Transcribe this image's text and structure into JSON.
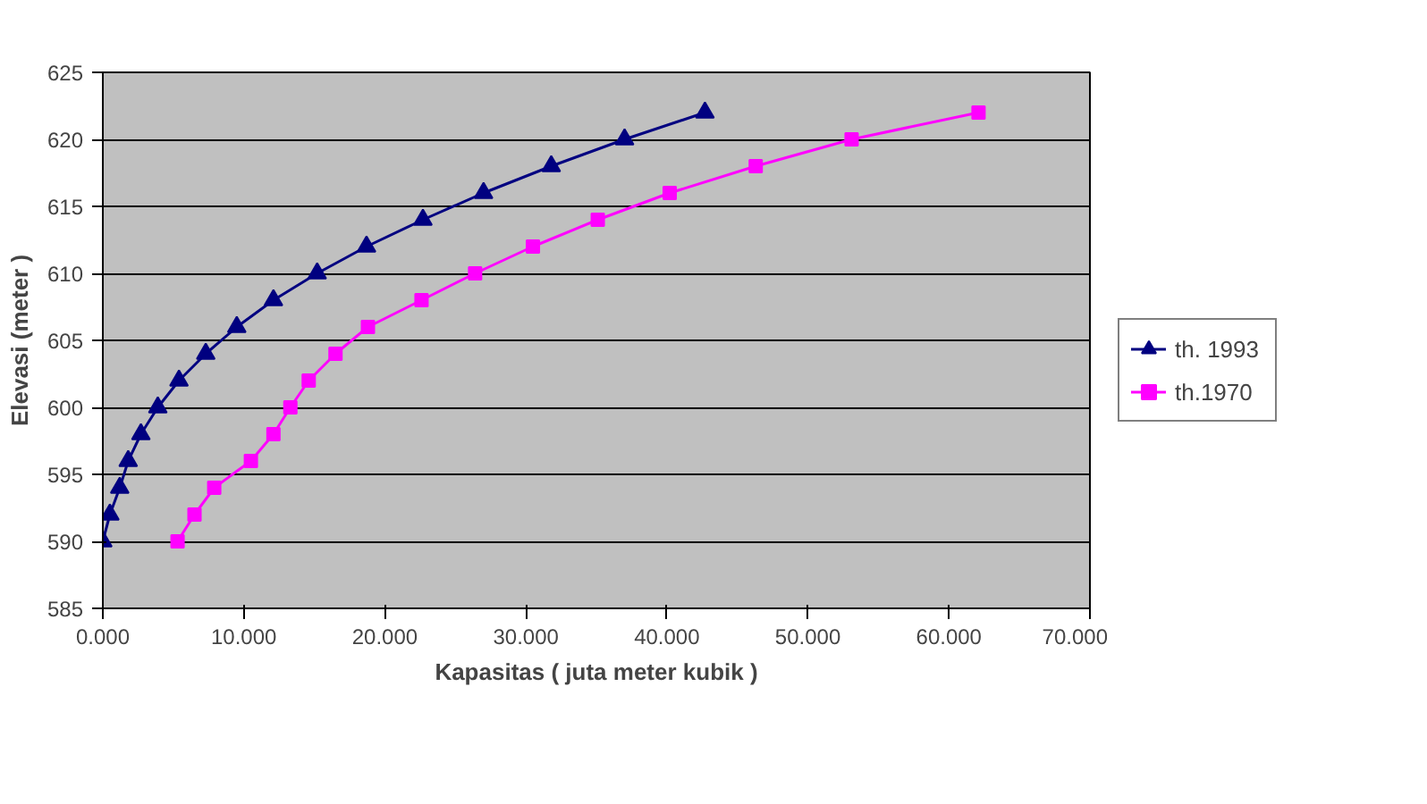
{
  "chart_data": {
    "type": "line",
    "xlabel": "Kapasitas ( juta meter kubik )",
    "ylabel": "Elevasi (meter )",
    "xlim": [
      0,
      70
    ],
    "xticks": [
      {
        "value": 0,
        "label": "0.000"
      },
      {
        "value": 10,
        "label": "10.000"
      },
      {
        "value": 20,
        "label": "20.000"
      },
      {
        "value": 30,
        "label": "30.000"
      },
      {
        "value": 40,
        "label": "40.000"
      },
      {
        "value": 50,
        "label": "50.000"
      },
      {
        "value": 60,
        "label": "60.000"
      },
      {
        "value": 70,
        "label": "70.000"
      }
    ],
    "ylim": [
      585,
      625
    ],
    "yticks": [
      585,
      590,
      595,
      600,
      605,
      610,
      615,
      620,
      625
    ],
    "grid": "y",
    "legend": "right",
    "series": [
      {
        "name": "th. 1993",
        "color": "#000080",
        "marker": "triangle",
        "x": [
          0,
          0.5,
          1.2,
          1.8,
          2.7,
          3.9,
          5.4,
          7.3,
          9.5,
          12.1,
          15.2,
          18.7,
          22.7,
          27,
          31.8,
          37,
          42.7
        ],
        "values": [
          590,
          592,
          594,
          596,
          598,
          600,
          602,
          604,
          606,
          608,
          610,
          612,
          614,
          616,
          618,
          620,
          622
        ]
      },
      {
        "name": "th.1970",
        "color": "#ff00ff",
        "marker": "square",
        "x": [
          5.3,
          6.5,
          7.9,
          10.5,
          12.1,
          13.3,
          14.6,
          16.5,
          18.8,
          22.6,
          26.4,
          30.5,
          35.1,
          40.2,
          46.3,
          53.1,
          62.1
        ],
        "values": [
          590,
          592,
          594,
          596,
          598,
          600,
          602,
          604,
          606,
          608,
          610,
          612,
          614,
          616,
          618,
          620,
          622
        ]
      }
    ]
  }
}
